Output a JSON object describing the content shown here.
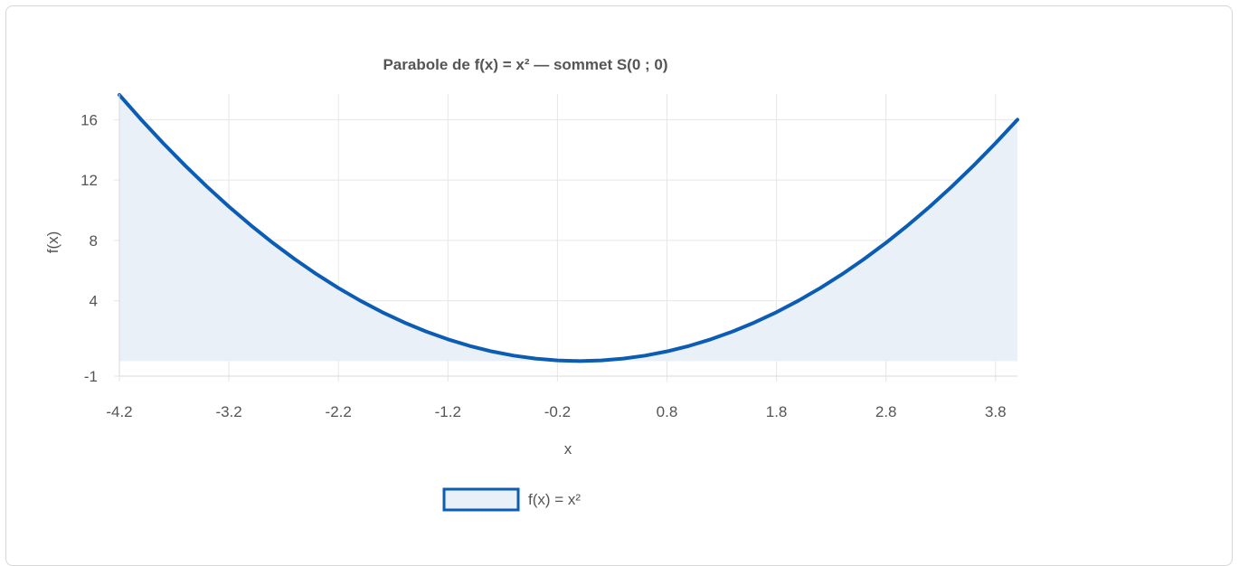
{
  "chart_data": {
    "type": "area",
    "title": "Parabole de f(x) = x² — sommet S(0 ; 0)",
    "xlabel": "x",
    "ylabel": "f(x)",
    "xlim": [
      -4.2,
      4.0
    ],
    "ylim": [
      -1,
      17.7
    ],
    "x_ticks": [
      "-4.2",
      "-3.2",
      "-2.2",
      "-1.2",
      "-0.2",
      "0.8",
      "1.8",
      "2.8",
      "3.8"
    ],
    "y_ticks": [
      "-1",
      "4",
      "8",
      "12",
      "16"
    ],
    "grid": true,
    "legend_position": "bottom",
    "fill_baseline": 0,
    "series": [
      {
        "name": "f(x) = x²",
        "color": "#0b5cb5",
        "fill": "#eaf0f8",
        "x": [
          -4.2,
          -4.0,
          -3.8,
          -3.6,
          -3.4,
          -3.2,
          -3.0,
          -2.8,
          -2.6,
          -2.4,
          -2.2,
          -2.0,
          -1.8,
          -1.6,
          -1.4,
          -1.2,
          -1.0,
          -0.8,
          -0.6,
          -0.4,
          -0.2,
          0.0,
          0.2,
          0.4,
          0.6,
          0.8,
          1.0,
          1.2,
          1.4,
          1.6,
          1.8,
          2.0,
          2.2,
          2.4,
          2.6,
          2.8,
          3.0,
          3.2,
          3.4,
          3.6,
          3.8,
          4.0
        ],
        "y": [
          17.64,
          16.0,
          14.44,
          12.96,
          11.56,
          10.24,
          9.0,
          7.84,
          6.76,
          5.76,
          4.84,
          4.0,
          3.24,
          2.56,
          1.96,
          1.44,
          1.0,
          0.64,
          0.36,
          0.16,
          0.04,
          0.0,
          0.04,
          0.16,
          0.36,
          0.64,
          1.0,
          1.44,
          1.96,
          2.56,
          3.24,
          4.0,
          4.84,
          5.76,
          6.76,
          7.84,
          9.0,
          10.24,
          11.56,
          12.96,
          14.44,
          16.0
        ]
      }
    ]
  }
}
